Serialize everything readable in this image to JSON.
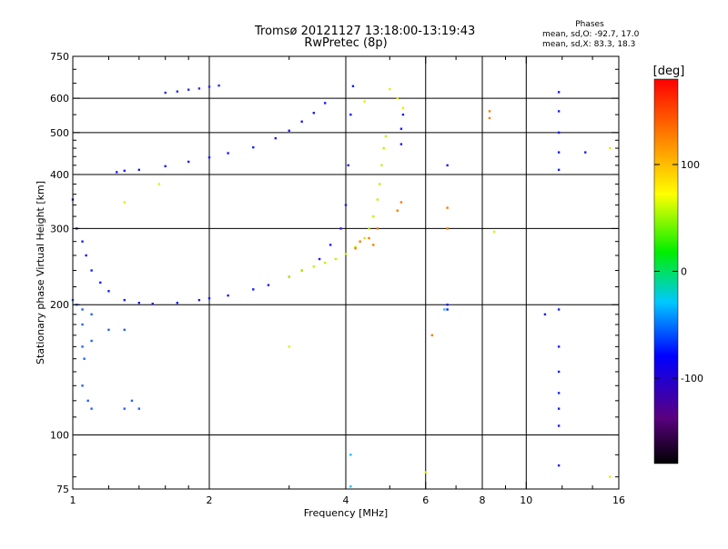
{
  "header": {
    "title_line1": "Tromsø 20121127 13:18:00-13:19:43",
    "title_line2": "RwPretec (8p)",
    "phases_heading": "Phases",
    "phase_o": "mean, sd,O: -92.7, 17.0",
    "phase_x": "mean, sd,X:  83.3, 18.3"
  },
  "colorbar": {
    "unit_label": "[deg]",
    "tick_labels": [
      "100",
      "0",
      "-100"
    ],
    "ticks": [
      100,
      0,
      -100
    ],
    "range": [
      -180,
      180
    ]
  },
  "chart_data": {
    "type": "scatter",
    "title": "Tromsø 20121127 13:18:00-13:19:43",
    "subtitle": "RwPretec (8p)",
    "xlabel": "Frequency [MHz]",
    "ylabel": "Stationary phase Virtual Height [km]",
    "x_scale": "log",
    "y_scale": "log",
    "xlim": [
      1,
      16
    ],
    "ylim": [
      75,
      750
    ],
    "x_ticks": [
      1,
      2,
      4,
      6,
      8,
      10,
      16
    ],
    "x_tick_labels": [
      "1",
      "2",
      "4",
      "6",
      "8",
      "10",
      "16"
    ],
    "y_ticks": [
      75,
      100,
      200,
      300,
      400,
      500,
      600,
      750
    ],
    "y_tick_labels": [
      "75",
      "100",
      "200",
      "300",
      "400",
      "500",
      "600",
      "750"
    ],
    "grid": true,
    "color_encodes": "phase [deg]",
    "series": [
      {
        "color": "#1a1aff",
        "points": [
          [
            1.0,
            350
          ],
          [
            1.02,
            300
          ],
          [
            1.05,
            280
          ],
          [
            1.07,
            260
          ],
          [
            1.1,
            240
          ],
          [
            1.15,
            225
          ],
          [
            1.2,
            215
          ],
          [
            1.3,
            205
          ],
          [
            1.4,
            202
          ],
          [
            1.5,
            201
          ],
          [
            1.7,
            202
          ],
          [
            1.9,
            205
          ],
          [
            2.0,
            207
          ],
          [
            2.2,
            210
          ],
          [
            2.5,
            217
          ],
          [
            2.7,
            222
          ],
          [
            3.0,
            232
          ],
          [
            3.2,
            240
          ],
          [
            3.5,
            255
          ],
          [
            3.7,
            275
          ],
          [
            3.9,
            300
          ],
          [
            4.0,
            340
          ],
          [
            4.05,
            420
          ],
          [
            4.1,
            550
          ],
          [
            4.15,
            640
          ]
        ]
      },
      {
        "color": "#2060ff",
        "points": [
          [
            1.0,
            205
          ],
          [
            1.02,
            200
          ],
          [
            1.05,
            195
          ],
          [
            1.1,
            190
          ],
          [
            1.05,
            180
          ],
          [
            1.05,
            160
          ],
          [
            1.06,
            150
          ],
          [
            1.1,
            165
          ],
          [
            1.2,
            175
          ],
          [
            1.3,
            175
          ],
          [
            1.05,
            130
          ],
          [
            1.08,
            120
          ],
          [
            1.1,
            115
          ],
          [
            1.3,
            115
          ],
          [
            1.35,
            120
          ],
          [
            1.4,
            115
          ]
        ]
      },
      {
        "color": "#1a1aff",
        "points": [
          [
            1.25,
            405
          ],
          [
            1.3,
            408
          ],
          [
            1.4,
            410
          ],
          [
            1.6,
            418
          ],
          [
            1.8,
            428
          ],
          [
            2.0,
            438
          ],
          [
            2.2,
            448
          ],
          [
            2.5,
            462
          ],
          [
            2.8,
            485
          ],
          [
            3.0,
            505
          ],
          [
            3.2,
            530
          ],
          [
            3.4,
            555
          ],
          [
            3.6,
            585
          ]
        ]
      },
      {
        "color": "#2a2aee",
        "points": [
          [
            1.6,
            618
          ],
          [
            1.7,
            622
          ],
          [
            1.8,
            628
          ],
          [
            1.9,
            632
          ],
          [
            2.0,
            638
          ],
          [
            2.1,
            642
          ]
        ]
      },
      {
        "color": "#c8ee00",
        "points": [
          [
            3.0,
            232
          ],
          [
            3.2,
            240
          ],
          [
            3.4,
            245
          ],
          [
            3.6,
            250
          ],
          [
            3.8,
            255
          ],
          [
            4.0,
            262
          ],
          [
            4.2,
            272
          ],
          [
            4.4,
            285
          ],
          [
            4.5,
            300
          ],
          [
            4.6,
            320
          ],
          [
            4.7,
            350
          ],
          [
            4.75,
            380
          ],
          [
            4.8,
            420
          ],
          [
            4.85,
            460
          ],
          [
            4.9,
            490
          ]
        ]
      },
      {
        "color": "#ff7a00",
        "points": [
          [
            4.2,
            270
          ],
          [
            4.3,
            280
          ],
          [
            4.5,
            285
          ],
          [
            4.6,
            275
          ],
          [
            4.7,
            300
          ],
          [
            5.2,
            330
          ],
          [
            5.3,
            345
          ],
          [
            6.7,
            300
          ],
          [
            6.7,
            335
          ],
          [
            8.3,
            560
          ],
          [
            8.3,
            540
          ],
          [
            6.2,
            170
          ]
        ]
      },
      {
        "color": "#1a1aff",
        "points": [
          [
            5.3,
            470
          ],
          [
            5.3,
            510
          ],
          [
            5.35,
            550
          ],
          [
            6.7,
            420
          ],
          [
            6.7,
            200
          ],
          [
            6.7,
            195
          ],
          [
            11.8,
            620
          ],
          [
            11.8,
            560
          ],
          [
            11.8,
            500
          ],
          [
            11.8,
            450
          ],
          [
            11.8,
            410
          ],
          [
            11.8,
            195
          ],
          [
            11.8,
            160
          ],
          [
            11.8,
            140
          ],
          [
            11.8,
            125
          ],
          [
            11.8,
            115
          ],
          [
            11.8,
            105
          ],
          [
            11.8,
            85
          ],
          [
            13.5,
            450
          ],
          [
            11.0,
            190
          ]
        ]
      },
      {
        "color": "#e6ee00",
        "points": [
          [
            4.4,
            590
          ],
          [
            5.0,
            630
          ],
          [
            5.2,
            600
          ],
          [
            5.35,
            570
          ],
          [
            15.3,
            460
          ],
          [
            15.3,
            80
          ],
          [
            6.0,
            82
          ],
          [
            8.5,
            295
          ],
          [
            3.0,
            160
          ],
          [
            1.55,
            380
          ],
          [
            1.3,
            345
          ]
        ]
      },
      {
        "color": "#22bbff",
        "points": [
          [
            4.1,
            90
          ],
          [
            4.1,
            76
          ],
          [
            6.6,
            195
          ]
        ]
      }
    ]
  }
}
